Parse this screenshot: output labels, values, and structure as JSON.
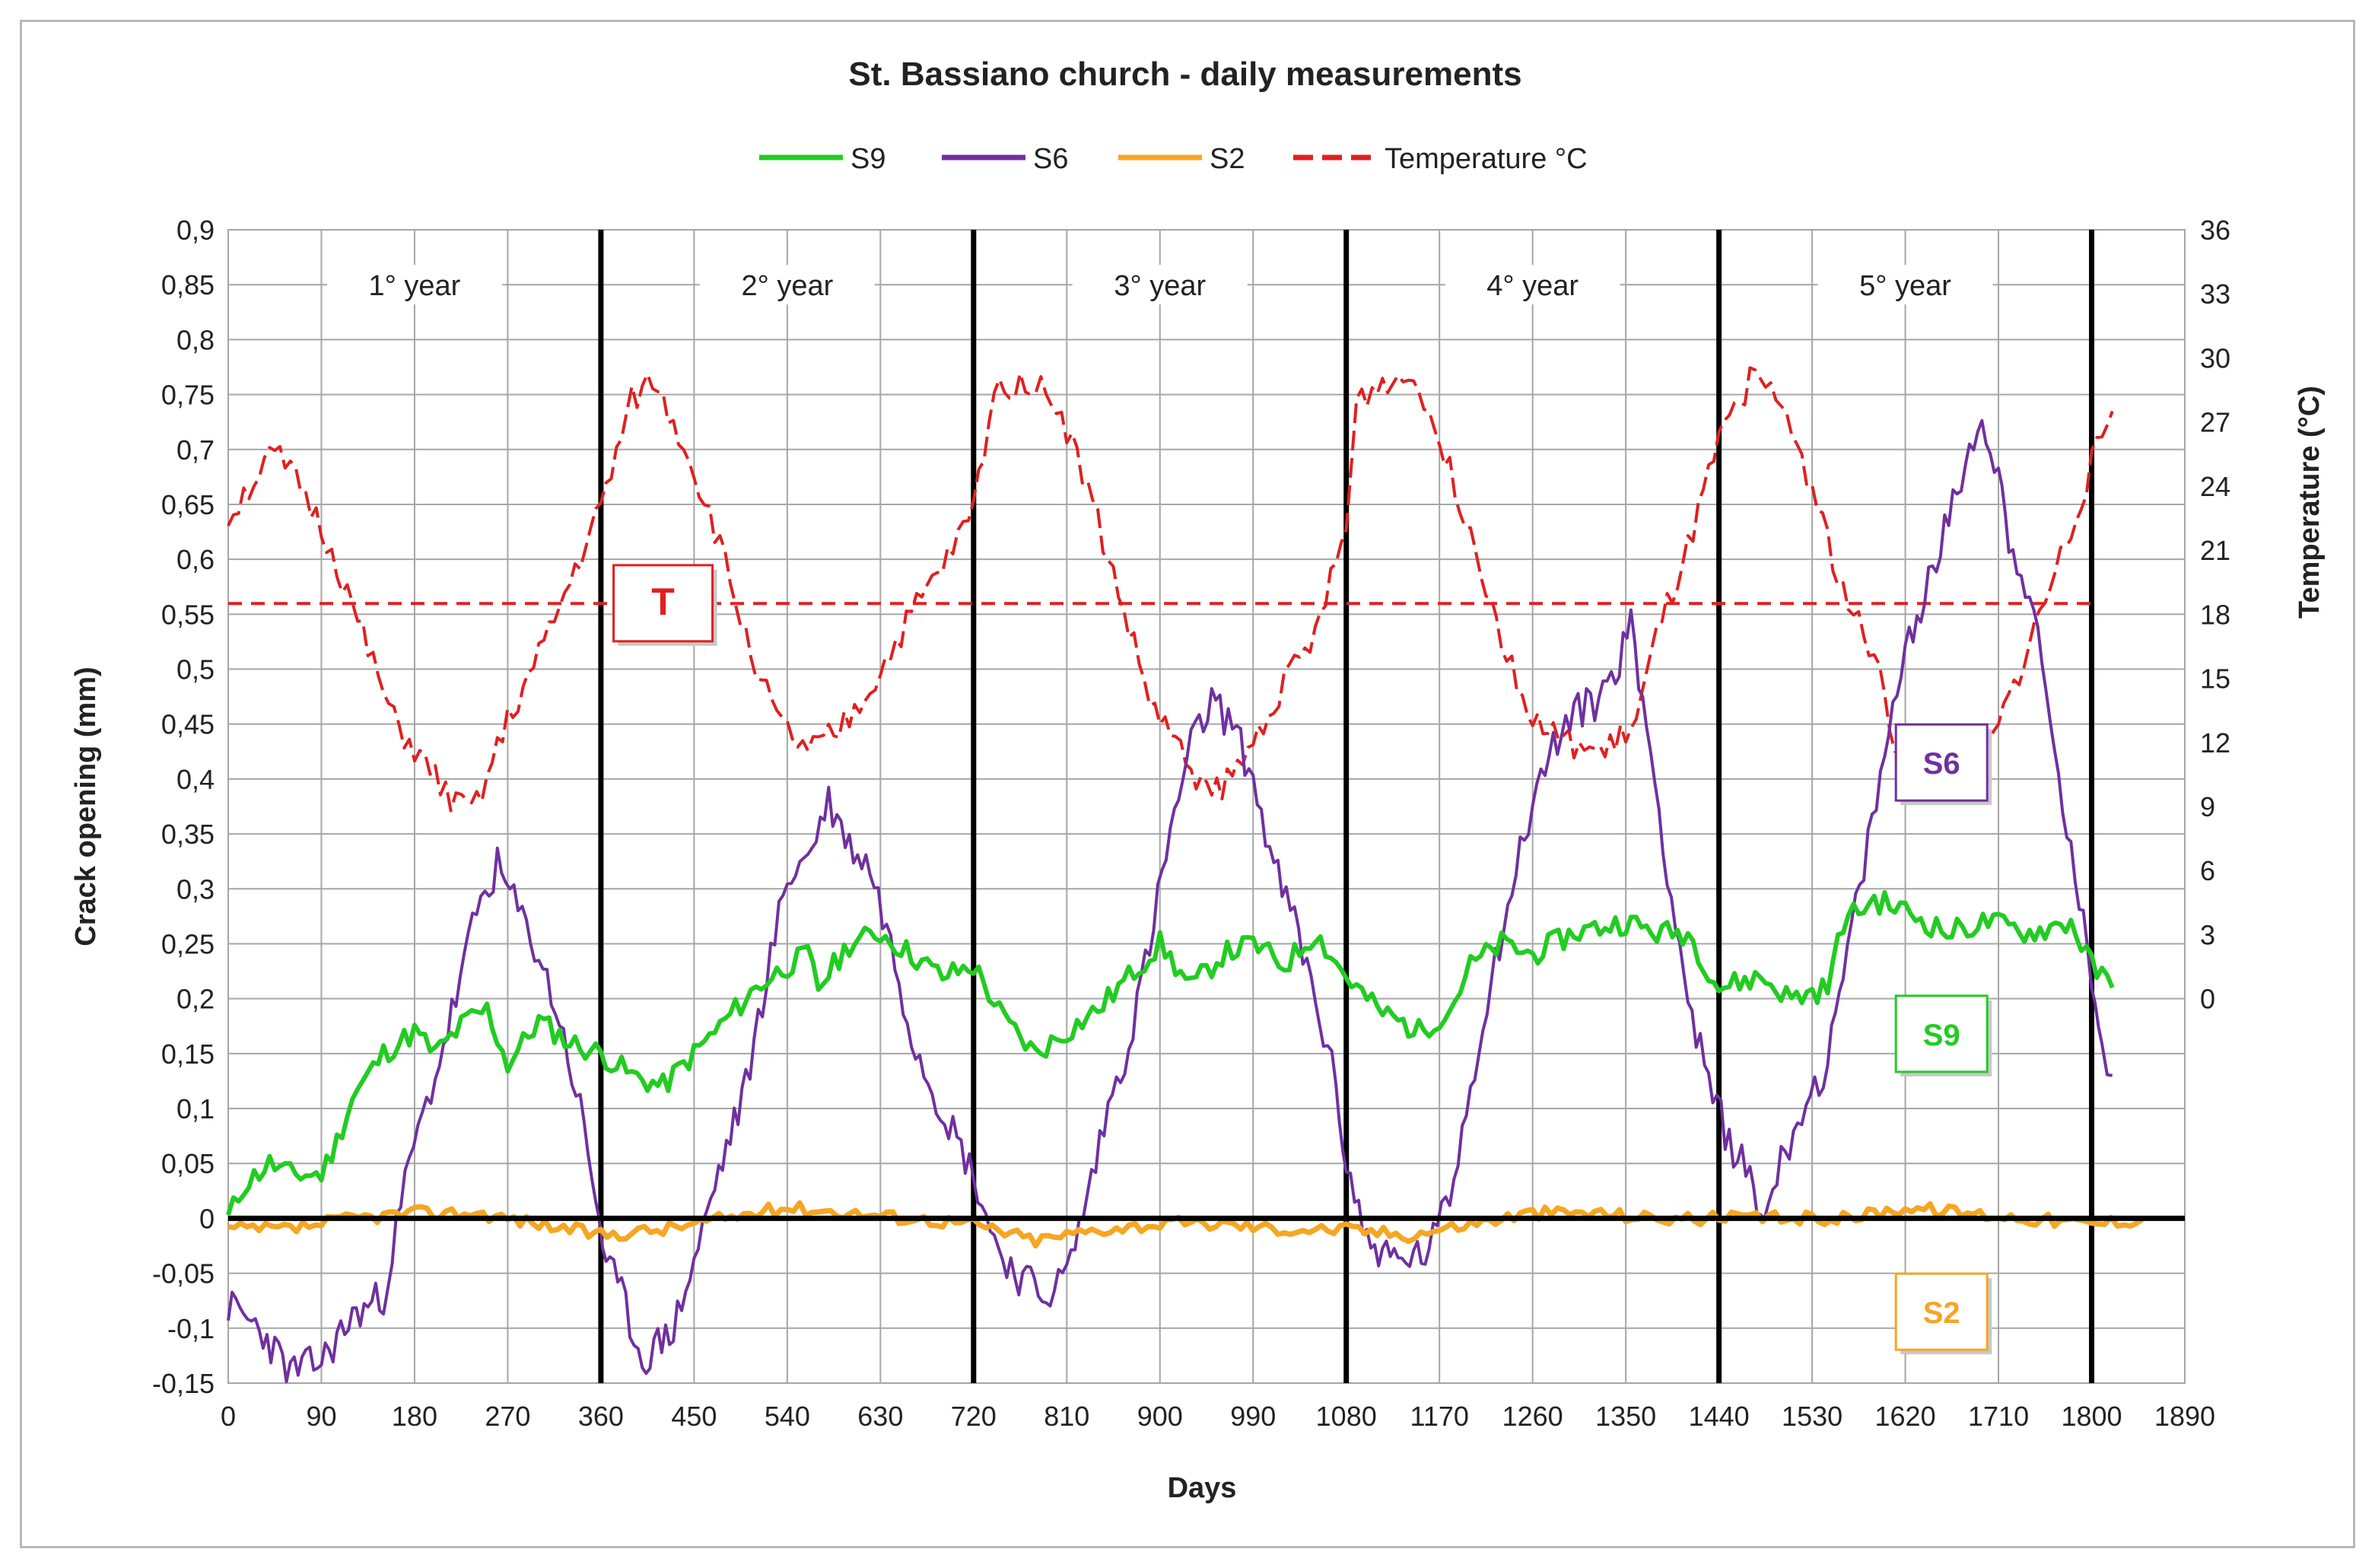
{
  "chart_data": {
    "type": "line",
    "title": "St. Bassiano church - daily measurements",
    "xlabel": "Days",
    "ylabel": "Crack opening (mm)",
    "y2label": "Temperature (°C)",
    "xlim": [
      0,
      1890
    ],
    "ylim": [
      -0.15,
      0.9
    ],
    "y2lim": [
      -18,
      36
    ],
    "xticks": [
      "0",
      "90",
      "180",
      "270",
      "360",
      "450",
      "540",
      "630",
      "720",
      "810",
      "900",
      "990",
      "1080",
      "1170",
      "1260",
      "1350",
      "1440",
      "1530",
      "1620",
      "1710",
      "1800",
      "1890"
    ],
    "yticks": [
      "-0,15",
      "-0,1",
      "-0,05",
      "0",
      "0,05",
      "0,1",
      "0,15",
      "0,2",
      "0,25",
      "0,3",
      "0,35",
      "0,4",
      "0,45",
      "0,5",
      "0,55",
      "0,6",
      "0,65",
      "0,7",
      "0,75",
      "0,8",
      "0,85",
      "0,9"
    ],
    "y2ticks": [
      "0",
      "3",
      "6",
      "9",
      "12",
      "15",
      "18",
      "21",
      "24",
      "27",
      "30",
      "33",
      "36"
    ],
    "year_labels": [
      "1° year",
      "2° year",
      "3° year",
      "4° year",
      "5° year"
    ],
    "year_boundaries": [
      360,
      720,
      1080,
      1440,
      1800
    ],
    "series": [
      {
        "name": "S9",
        "color": "#22cc22",
        "style": "solid",
        "points": [
          [
            0,
            0
          ],
          [
            15,
            0.03
          ],
          [
            40,
            0.05
          ],
          [
            60,
            0.04
          ],
          [
            90,
            0.04
          ],
          [
            105,
            0.07
          ],
          [
            120,
            0.11
          ],
          [
            150,
            0.15
          ],
          [
            180,
            0.17
          ],
          [
            200,
            0.15
          ],
          [
            230,
            0.18
          ],
          [
            250,
            0.19
          ],
          [
            270,
            0.14
          ],
          [
            300,
            0.18
          ],
          [
            330,
            0.16
          ],
          [
            360,
            0.15
          ],
          [
            390,
            0.13
          ],
          [
            420,
            0.12
          ],
          [
            450,
            0.15
          ],
          [
            480,
            0.18
          ],
          [
            510,
            0.21
          ],
          [
            540,
            0.23
          ],
          [
            560,
            0.24
          ],
          [
            570,
            0.21
          ],
          [
            600,
            0.25
          ],
          [
            630,
            0.26
          ],
          [
            660,
            0.24
          ],
          [
            690,
            0.22
          ],
          [
            720,
            0.23
          ],
          [
            750,
            0.18
          ],
          [
            780,
            0.15
          ],
          [
            810,
            0.17
          ],
          [
            840,
            0.19
          ],
          [
            870,
            0.22
          ],
          [
            900,
            0.25
          ],
          [
            930,
            0.21
          ],
          [
            960,
            0.24
          ],
          [
            990,
            0.25
          ],
          [
            1020,
            0.23
          ],
          [
            1050,
            0.26
          ],
          [
            1080,
            0.22
          ],
          [
            1110,
            0.19
          ],
          [
            1150,
            0.17
          ],
          [
            1180,
            0.19
          ],
          [
            1200,
            0.23
          ],
          [
            1230,
            0.25
          ],
          [
            1260,
            0.24
          ],
          [
            1300,
            0.26
          ],
          [
            1350,
            0.27
          ],
          [
            1380,
            0.26
          ],
          [
            1410,
            0.26
          ],
          [
            1440,
            0.21
          ],
          [
            1480,
            0.22
          ],
          [
            1510,
            0.2
          ],
          [
            1545,
            0.21
          ],
          [
            1560,
            0.27
          ],
          [
            1590,
            0.29
          ],
          [
            1620,
            0.28
          ],
          [
            1660,
            0.26
          ],
          [
            1700,
            0.27
          ],
          [
            1740,
            0.26
          ],
          [
            1780,
            0.27
          ],
          [
            1800,
            0.23
          ],
          [
            1820,
            0.21
          ]
        ]
      },
      {
        "name": "S6",
        "color": "#7030a0",
        "style": "solid",
        "points": [
          [
            0,
            -0.08
          ],
          [
            30,
            -0.1
          ],
          [
            60,
            -0.14
          ],
          [
            90,
            -0.13
          ],
          [
            120,
            -0.09
          ],
          [
            150,
            -0.07
          ],
          [
            175,
            0.05
          ],
          [
            200,
            0.13
          ],
          [
            220,
            0.2
          ],
          [
            240,
            0.28
          ],
          [
            260,
            0.32
          ],
          [
            280,
            0.28
          ],
          [
            300,
            0.24
          ],
          [
            320,
            0.18
          ],
          [
            340,
            0.1
          ],
          [
            355,
            0.02
          ],
          [
            365,
            -0.04
          ],
          [
            380,
            -0.07
          ],
          [
            400,
            -0.13
          ],
          [
            430,
            -0.1
          ],
          [
            450,
            -0.04
          ],
          [
            470,
            0.03
          ],
          [
            500,
            0.12
          ],
          [
            520,
            0.22
          ],
          [
            540,
            0.31
          ],
          [
            560,
            0.33
          ],
          [
            580,
            0.38
          ],
          [
            600,
            0.34
          ],
          [
            620,
            0.32
          ],
          [
            640,
            0.25
          ],
          [
            660,
            0.17
          ],
          [
            680,
            0.12
          ],
          [
            700,
            0.08
          ],
          [
            720,
            0.04
          ],
          [
            740,
            -0.02
          ],
          [
            760,
            -0.05
          ],
          [
            790,
            -0.07
          ],
          [
            810,
            -0.05
          ],
          [
            830,
            0.02
          ],
          [
            850,
            0.1
          ],
          [
            870,
            0.16
          ],
          [
            890,
            0.25
          ],
          [
            910,
            0.35
          ],
          [
            930,
            0.43
          ],
          [
            950,
            0.47
          ],
          [
            970,
            0.45
          ],
          [
            990,
            0.4
          ],
          [
            1010,
            0.32
          ],
          [
            1030,
            0.27
          ],
          [
            1050,
            0.2
          ],
          [
            1070,
            0.12
          ],
          [
            1080,
            0.05
          ],
          [
            1100,
            -0.02
          ],
          [
            1130,
            -0.04
          ],
          [
            1160,
            -0.03
          ],
          [
            1180,
            0.02
          ],
          [
            1200,
            0.12
          ],
          [
            1220,
            0.22
          ],
          [
            1240,
            0.3
          ],
          [
            1260,
            0.38
          ],
          [
            1280,
            0.43
          ],
          [
            1300,
            0.46
          ],
          [
            1320,
            0.47
          ],
          [
            1340,
            0.5
          ],
          [
            1355,
            0.54
          ],
          [
            1370,
            0.45
          ],
          [
            1390,
            0.32
          ],
          [
            1410,
            0.2
          ],
          [
            1430,
            0.12
          ],
          [
            1450,
            0.07
          ],
          [
            1470,
            0.04
          ],
          [
            1480,
            0.0
          ],
          [
            1500,
            0.05
          ],
          [
            1520,
            0.1
          ],
          [
            1545,
            0.14
          ],
          [
            1560,
            0.22
          ],
          [
            1580,
            0.32
          ],
          [
            1600,
            0.42
          ],
          [
            1620,
            0.52
          ],
          [
            1650,
            0.6
          ],
          [
            1670,
            0.66
          ],
          [
            1690,
            0.73
          ],
          [
            1710,
            0.68
          ],
          [
            1720,
            0.62
          ],
          [
            1740,
            0.57
          ],
          [
            1760,
            0.45
          ],
          [
            1780,
            0.33
          ],
          [
            1800,
            0.22
          ],
          [
            1810,
            0.17
          ],
          [
            1815,
            0.14
          ],
          [
            1820,
            0.13
          ]
        ]
      },
      {
        "name": "S2",
        "color": "#f5a623",
        "style": "solid",
        "points": [
          [
            0,
            -0.01
          ],
          [
            60,
            -0.01
          ],
          [
            120,
            0.0
          ],
          [
            180,
            0.005
          ],
          [
            240,
            0.005
          ],
          [
            300,
            -0.005
          ],
          [
            360,
            -0.015
          ],
          [
            420,
            -0.01
          ],
          [
            480,
            0.0
          ],
          [
            540,
            0.01
          ],
          [
            600,
            0.005
          ],
          [
            660,
            0.0
          ],
          [
            720,
            -0.005
          ],
          [
            780,
            -0.02
          ],
          [
            840,
            -0.01
          ],
          [
            900,
            -0.005
          ],
          [
            960,
            -0.005
          ],
          [
            1020,
            -0.01
          ],
          [
            1080,
            -0.01
          ],
          [
            1140,
            -0.015
          ],
          [
            1200,
            -0.005
          ],
          [
            1260,
            0.005
          ],
          [
            1320,
            0.005
          ],
          [
            1380,
            0.0
          ],
          [
            1440,
            0.0
          ],
          [
            1500,
            0.0
          ],
          [
            1560,
            0.0
          ],
          [
            1620,
            0.01
          ],
          [
            1680,
            0.005
          ],
          [
            1740,
            0.0
          ],
          [
            1800,
            -0.005
          ],
          [
            1850,
            0.0
          ]
        ]
      },
      {
        "name": "Temperature °C",
        "color": "#e02020",
        "style": "dashed",
        "axis": "right",
        "points": [
          [
            0,
            22.5
          ],
          [
            20,
            24
          ],
          [
            45,
            25.5
          ],
          [
            70,
            24
          ],
          [
            100,
            21
          ],
          [
            130,
            17
          ],
          [
            160,
            13
          ],
          [
            190,
            11
          ],
          [
            220,
            9
          ],
          [
            240,
            9
          ],
          [
            270,
            13
          ],
          [
            300,
            16
          ],
          [
            330,
            19.5
          ],
          [
            360,
            23
          ],
          [
            390,
            28
          ],
          [
            410,
            29
          ],
          [
            440,
            26
          ],
          [
            470,
            22
          ],
          [
            500,
            17
          ],
          [
            530,
            13
          ],
          [
            560,
            11.5
          ],
          [
            590,
            12.5
          ],
          [
            620,
            14.5
          ],
          [
            660,
            18
          ],
          [
            700,
            21
          ],
          [
            720,
            23
          ],
          [
            740,
            28.5
          ],
          [
            770,
            29
          ],
          [
            800,
            28
          ],
          [
            830,
            24
          ],
          [
            860,
            19
          ],
          [
            890,
            14
          ],
          [
            920,
            11.5
          ],
          [
            950,
            9.5
          ],
          [
            980,
            11
          ],
          [
            1010,
            14
          ],
          [
            1050,
            17
          ],
          [
            1080,
            22
          ],
          [
            1090,
            28
          ],
          [
            1120,
            29
          ],
          [
            1150,
            29
          ],
          [
            1170,
            26
          ],
          [
            1200,
            22
          ],
          [
            1230,
            17
          ],
          [
            1260,
            13
          ],
          [
            1290,
            12
          ],
          [
            1330,
            11.5
          ],
          [
            1360,
            13
          ],
          [
            1380,
            17
          ],
          [
            1410,
            21
          ],
          [
            1440,
            26
          ],
          [
            1470,
            29
          ],
          [
            1500,
            28
          ],
          [
            1530,
            24
          ],
          [
            1560,
            19
          ],
          [
            1590,
            16
          ],
          [
            1610,
            12
          ],
          [
            1640,
            10
          ],
          [
            1670,
            10
          ],
          [
            1700,
            11.5
          ],
          [
            1720,
            14
          ],
          [
            1750,
            18
          ],
          [
            1780,
            22
          ],
          [
            1800,
            25
          ],
          [
            1820,
            27.5
          ]
        ]
      }
    ],
    "reference_line": {
      "name": "Temperature mean",
      "y2": 18.5,
      "color": "#e02020",
      "style": "dashed",
      "x_range": [
        0,
        1800
      ]
    },
    "annotations": [
      {
        "text": "T",
        "color": "#e02020",
        "x": 420,
        "y": 0.56
      },
      {
        "text": "S6",
        "color": "#7030a0",
        "x": 1655,
        "y": 0.415
      },
      {
        "text": "S9",
        "color": "#22cc22",
        "x": 1655,
        "y": 0.168
      },
      {
        "text": "S2",
        "color": "#f5a623",
        "x": 1655,
        "y": -0.085
      }
    ],
    "legend_position": "top-center",
    "grid": true
  }
}
